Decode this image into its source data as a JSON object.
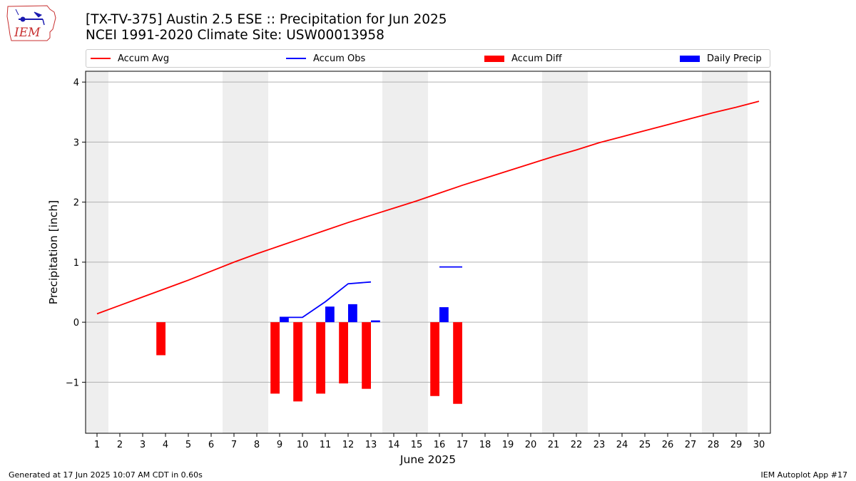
{
  "header": {
    "title_line1": "[TX-TV-375] Austin 2.5 ESE :: Precipitation for Jun 2025",
    "title_line2": "NCEI 1991-2020 Climate Site: USW00013958"
  },
  "logo": {
    "text": "IEM"
  },
  "legend": {
    "accum_avg": "Accum Avg",
    "accum_obs": "Accum Obs",
    "accum_diff": "Accum Diff",
    "daily_precip": "Daily Precip"
  },
  "colors": {
    "accum_avg": "#ff0000",
    "accum_obs": "#0000ff",
    "accum_diff": "#ff0000",
    "daily_precip": "#0000ff",
    "weekend_shade": "#eeeeee",
    "grid": "#b0b0b0"
  },
  "footer": {
    "left": "Generated at 17 Jun 2025 10:07 AM CDT in 0.60s",
    "right": "IEM Autoplot App #17"
  },
  "chart_data": {
    "type": "bar",
    "xlabel": "June 2025",
    "ylabel": "Precipitation [inch]",
    "xlim": [
      0.5,
      30.5
    ],
    "ylim": [
      -1.85,
      4.18
    ],
    "x_ticks": [
      1,
      2,
      3,
      4,
      5,
      6,
      7,
      8,
      9,
      10,
      11,
      12,
      13,
      14,
      15,
      16,
      17,
      18,
      19,
      20,
      21,
      22,
      23,
      24,
      25,
      26,
      27,
      28,
      29,
      30
    ],
    "y_ticks": [
      -1,
      0,
      1,
      2,
      3,
      4
    ],
    "y_tick_labels": [
      "−1",
      "0",
      "1",
      "2",
      "3",
      "4"
    ],
    "grid": "horizontal",
    "weekend_shaded_days": [
      1,
      7,
      8,
      14,
      15,
      21,
      22,
      28,
      29
    ],
    "accum_avg": {
      "days": [
        1,
        2,
        3,
        4,
        5,
        6,
        7,
        8,
        9,
        10,
        11,
        12,
        13,
        14,
        15,
        16,
        17,
        18,
        19,
        20,
        21,
        22,
        23,
        24,
        25,
        26,
        27,
        28,
        29,
        30
      ],
      "values": [
        0.14,
        0.28,
        0.42,
        0.56,
        0.7,
        0.85,
        1.0,
        1.14,
        1.27,
        1.4,
        1.53,
        1.66,
        1.78,
        1.9,
        2.02,
        2.15,
        2.28,
        2.4,
        2.52,
        2.64,
        2.76,
        2.87,
        2.99,
        3.09,
        3.19,
        3.29,
        3.39,
        3.49,
        3.58,
        3.68
      ]
    },
    "accum_obs": {
      "segments": [
        {
          "days": [
            9,
            10,
            11,
            12,
            13
          ],
          "values": [
            0.08,
            0.08,
            0.34,
            0.64,
            0.67
          ]
        },
        {
          "days": [
            16,
            17
          ],
          "values": [
            0.92,
            0.92
          ]
        }
      ]
    },
    "accum_diff": {
      "days": [
        4,
        9,
        10,
        11,
        12,
        13,
        16,
        17
      ],
      "values": [
        -0.55,
        -1.19,
        -1.32,
        -1.19,
        -1.02,
        -1.11,
        -1.23,
        -1.36
      ]
    },
    "daily_precip": {
      "days": [
        9,
        11,
        12,
        13,
        16
      ],
      "values": [
        0.08,
        0.26,
        0.3,
        0.03,
        0.25
      ]
    }
  }
}
